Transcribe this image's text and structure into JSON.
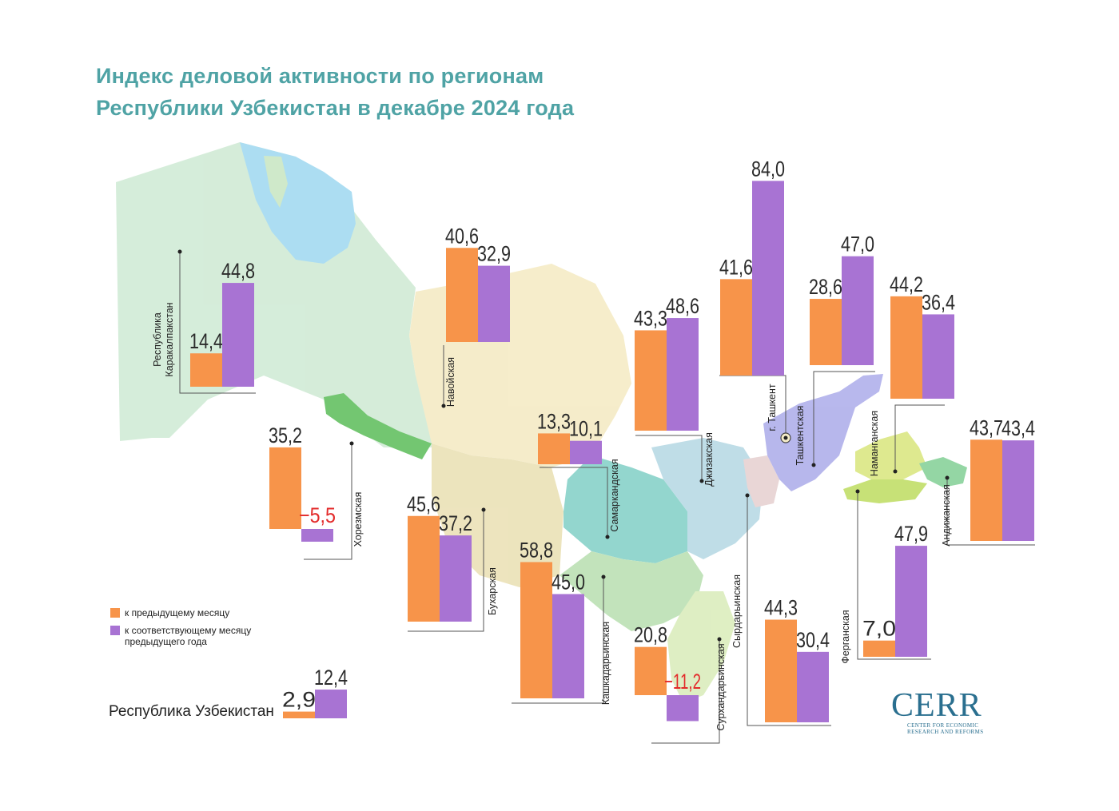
{
  "title": {
    "line1": "Индекс деловой активности по регионам",
    "line2": "Республики Узбекистан в декабре 2024 года"
  },
  "colors": {
    "prev_month": "#f7944a",
    "prev_year": "#a873d3",
    "negative_text": "#e32b2b",
    "value_text": "#2b2b2b",
    "title": "#4fa3a5",
    "logo": "#2a6f8f"
  },
  "legend": {
    "prev_month": "к предыдущему месяцу",
    "prev_year_line1": "к соответствующему месяцу",
    "prev_year_line2": "предыдущего года"
  },
  "chart_data": {
    "type": "bar",
    "series": [
      {
        "name": "к предыдущему месяцу"
      },
      {
        "name": "к соответствующему месяцу предыдущего года"
      }
    ],
    "regions": [
      {
        "name": "Республика\nКаракалпакстан",
        "prev_month": "14,4",
        "prev_year": "44,8"
      },
      {
        "name": "Хорезмская",
        "prev_month": "35,2",
        "prev_year": "−5,5"
      },
      {
        "name": "Навойская",
        "prev_month": "40,6",
        "prev_year": "32,9"
      },
      {
        "name": "Бухарская",
        "prev_month": "45,6",
        "prev_year": "37,2"
      },
      {
        "name": "Самаркандская",
        "prev_month": "13,3",
        "prev_year": "10,1"
      },
      {
        "name": "Кашкадарьинская",
        "prev_month": "58,8",
        "prev_year": "45,0"
      },
      {
        "name": "Джизакская",
        "prev_month": "43,3",
        "prev_year": "48,6"
      },
      {
        "name": "Сурхандарьинская",
        "prev_month": "20,8",
        "prev_year": "−11,2"
      },
      {
        "name": "г. Ташкент",
        "prev_month": "41,6",
        "prev_year": "84,0"
      },
      {
        "name": "Сырдарьинская",
        "prev_month": "44,3",
        "prev_year": "30,4"
      },
      {
        "name": "Ташкентская",
        "prev_month": "28,6",
        "prev_year": "47,0"
      },
      {
        "name": "Наманганская",
        "prev_month": "44,2",
        "prev_year": "36,4"
      },
      {
        "name": "Ферганская",
        "prev_month": "7,0",
        "prev_year": "47,9"
      },
      {
        "name": "Андижанская",
        "prev_month": "43,7",
        "prev_year": "43,4"
      }
    ],
    "national": {
      "name": "Республика Узбекистан",
      "prev_month": "2,9",
      "prev_year": "12,4"
    }
  },
  "logo": {
    "text": "CERR",
    "sub1": "CENTER FOR ECONOMIC",
    "sub2": "RESEARCH AND REFORMS"
  }
}
